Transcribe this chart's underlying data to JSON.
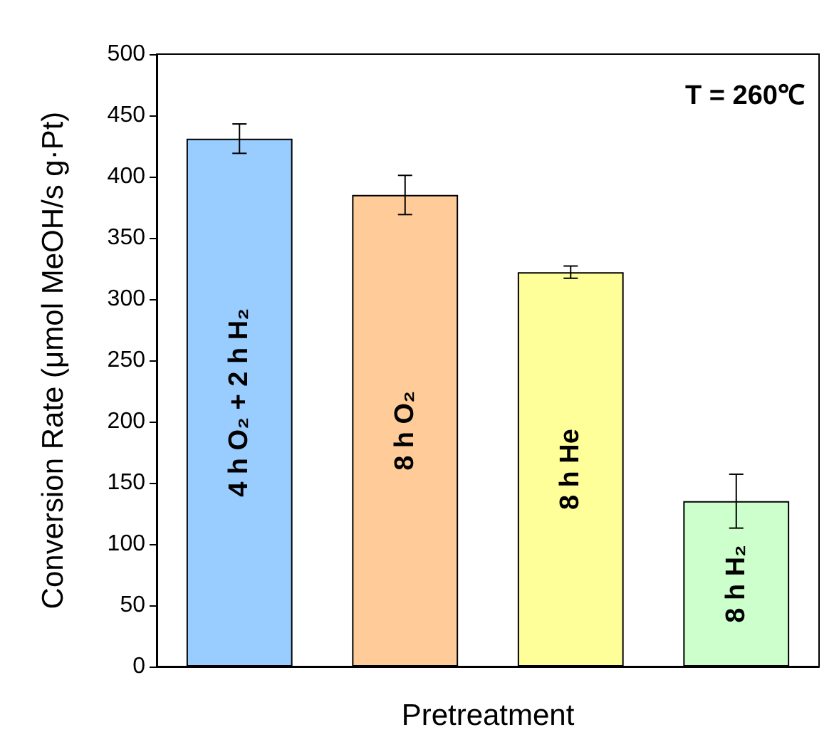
{
  "chart_data": {
    "type": "bar",
    "xlabel": "Pretreatment",
    "ylabel": "Conversion Rate (μmol MeOH/s g·Pt)",
    "categories": [
      "4 h O₂ + 2 h H₂",
      "8 h O₂",
      "8 h He",
      "8 h H₂"
    ],
    "values": [
      431,
      385,
      322,
      135
    ],
    "errors": [
      12,
      16,
      5,
      22
    ],
    "colors": [
      "#99ccff",
      "#ffcc99",
      "#ffff99",
      "#ccffcc"
    ],
    "ylim": [
      0,
      500
    ],
    "yticks": [
      0,
      50,
      100,
      150,
      200,
      250,
      300,
      350,
      400,
      450,
      500
    ],
    "grid": false,
    "annotations": [
      "T = 260℃"
    ]
  }
}
